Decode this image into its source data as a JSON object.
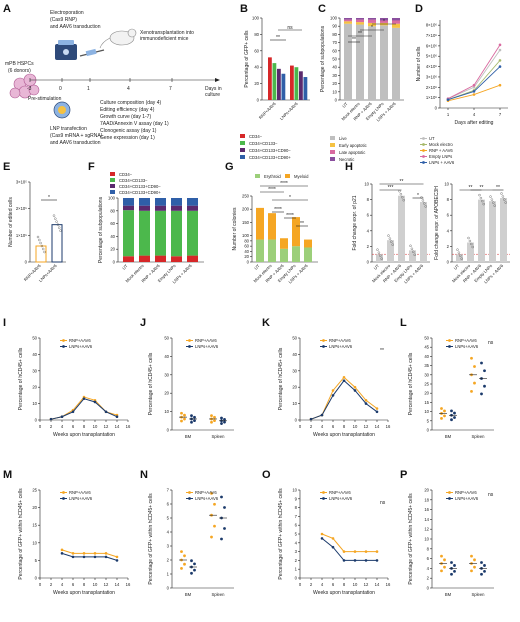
{
  "colors": {
    "orange": "#f5a623",
    "navy": "#1b3a6b",
    "red": "#d62728",
    "green": "#4cb84c",
    "darkpurple": "#5b2a6e",
    "blue": "#2f5fa8",
    "gray": "#bfbfbf",
    "yellow": "#f5c242",
    "pink": "#d96aa0",
    "lightgreen": "#9ccf7a",
    "purple": "#8a4f9e",
    "olive": "#a6b96b"
  },
  "panel_labels": {
    "A": "A",
    "B": "B",
    "C": "C",
    "D": "D",
    "E": "E",
    "F": "F",
    "G": "G",
    "H": "H",
    "I": "I",
    "J": "J",
    "K": "K",
    "L": "L",
    "M": "M",
    "N": "N",
    "O": "O",
    "P": "P"
  },
  "panelA": {
    "electroporation": "Electroporation",
    "electroporation_sub": "(Cas9 RNP)",
    "electroporation_sub2": "and AAV6 transduction",
    "source": "mPB HSPCs",
    "donors": "(6 donors)",
    "prestim": "Pre-stimulation",
    "lnp": "LNP transfection",
    "lnp_sub": "(Cas9 mRNA + sgRNA)",
    "lnp_sub2": "and AAV6 transduction",
    "xeno": "Xenotransplantation into",
    "xeno2": "immunodeficient mice",
    "days": [
      "-3",
      "0",
      "1",
      "4",
      "7"
    ],
    "days_label": "Days in",
    "days_label2": "culture",
    "readouts": [
      "Culture composition (day 4)",
      "Editing efficiency (day 4)",
      "Growth curve (day 1-7)",
      "7AAD/Annexin V assay (day 1)",
      "Clonogenic assay (day 1)",
      "Gene expression (day 1)"
    ]
  },
  "chart_data": [
    {
      "id": "B",
      "type": "bar",
      "ylabel": "Percentage of GFP+ cells",
      "ylim": [
        0,
        100
      ],
      "yticks": [
        0,
        20,
        40,
        60,
        80,
        100
      ],
      "categories": [
        "RNP+AAV6",
        "LNPs+AAV6"
      ],
      "series": [
        {
          "name": "CD34−",
          "values": [
            52,
            42
          ]
        },
        {
          "name": "CD34+CD133−",
          "values": [
            45,
            40
          ]
        },
        {
          "name": "CD34+CD133+CD90−",
          "values": [
            38,
            35
          ]
        },
        {
          "name": "CD34+CD133+CD90+",
          "values": [
            32,
            28
          ]
        }
      ],
      "annotations": [
        "**",
        "ns"
      ]
    },
    {
      "id": "C",
      "type": "bar",
      "ylabel": "Percentage of subpopulations",
      "ylim": [
        0,
        100
      ],
      "yticks": [
        0,
        10,
        20,
        30,
        40,
        50,
        60,
        70,
        80,
        90,
        100
      ],
      "categories": [
        "UT",
        "Mock electro",
        "RNP + AAV6",
        "Empty LNPs",
        "LNPs + AAV6"
      ],
      "series": [
        {
          "name": "Live",
          "values": [
            93,
            92,
            90,
            91,
            88
          ]
        },
        {
          "name": "Early apoptotic",
          "values": [
            3,
            3,
            4,
            3,
            5
          ]
        },
        {
          "name": "Late apoptotic",
          "values": [
            2,
            3,
            4,
            3,
            4
          ]
        },
        {
          "name": "Necrotic",
          "values": [
            2,
            2,
            2,
            3,
            3
          ]
        }
      ],
      "annotations": [
        "**",
        "**",
        "*",
        "*"
      ]
    },
    {
      "id": "D",
      "type": "line",
      "ylabel": "Number of cells",
      "xlabel": "Days after editing",
      "xticks": [
        "1",
        "4",
        "7"
      ],
      "yticks": [
        "1×10⁶",
        "2×10⁶",
        "3×10⁶",
        "4×10⁶",
        "5×10⁶",
        "6×10⁶",
        "7×10⁶",
        "8×10⁶"
      ],
      "ylim": [
        0,
        8.5
      ],
      "series": [
        {
          "name": "UT",
          "values": [
            0.9,
            2.0,
            5.6
          ]
        },
        {
          "name": "Mock electro",
          "values": [
            0.8,
            1.7,
            4.6
          ]
        },
        {
          "name": "RNP + AAV6",
          "values": [
            0.7,
            1.3,
            2.2
          ]
        },
        {
          "name": "Empty LNPs",
          "values": [
            0.9,
            2.2,
            6.1
          ]
        },
        {
          "name": "LNPs + AAV6",
          "values": [
            0.8,
            1.6,
            4.0
          ]
        }
      ]
    },
    {
      "id": "E",
      "type": "bar",
      "ylabel": "Number of edited cells",
      "categories": [
        "RNP+AAV6",
        "LNPs+AAV6"
      ],
      "values": [
        0.6,
        1.4
      ],
      "yticks": [
        "0",
        "1×10⁵",
        "2×10⁵",
        "3×10⁵"
      ],
      "ylim": [
        0,
        3
      ],
      "annotations": [
        "*"
      ]
    },
    {
      "id": "F",
      "type": "bar",
      "ylabel": "Percentage of subpopulations",
      "ylim": [
        0,
        100
      ],
      "yticks": [
        0,
        20,
        40,
        60,
        80,
        100
      ],
      "categories": [
        "UT",
        "Mock electro",
        "RNP + AAV6",
        "Empty LNPs",
        "LNPs + AAV6"
      ],
      "series": [
        {
          "name": "CD34−",
          "values": [
            9,
            10,
            10,
            9,
            10
          ]
        },
        {
          "name": "CD34+CD133−",
          "values": [
            72,
            70,
            70,
            71,
            70
          ]
        },
        {
          "name": "CD34+CD133+CD90−",
          "values": [
            7,
            8,
            8,
            8,
            8
          ]
        },
        {
          "name": "CD34+CD133+CD90+",
          "values": [
            12,
            12,
            12,
            12,
            12
          ]
        }
      ]
    },
    {
      "id": "G",
      "type": "bar",
      "ylabel": "Number of colonies",
      "ylim": [
        0,
        250
      ],
      "yticks": [
        0,
        20,
        40,
        60,
        80,
        100,
        150,
        200,
        250
      ],
      "categories": [
        "UT",
        "Mock electro",
        "RNP + AAV6",
        "Empty LNPs",
        "LNPs + AAV6"
      ],
      "series": [
        {
          "name": "Erythroid",
          "values": [
            85,
            85,
            50,
            60,
            55
          ]
        },
        {
          "name": "Myeloid",
          "values": [
            120,
            100,
            40,
            110,
            30
          ]
        }
      ],
      "annotations": [
        "****",
        "****",
        "****",
        "****",
        "*",
        "**"
      ]
    },
    {
      "id": "H1",
      "type": "bar",
      "ylabel": "Fold change expr. of p21",
      "ylim": [
        0,
        10
      ],
      "yticks": [
        0,
        2,
        4,
        6,
        8,
        10
      ],
      "categories": [
        "UT",
        "Mock electro",
        "RNP + AAV6",
        "Empty LNPs",
        "LNPs + AAV6"
      ],
      "values": [
        1,
        2.8,
        8.5,
        1.5,
        7.7
      ],
      "annotations": [
        "***",
        "**",
        "*"
      ]
    },
    {
      "id": "H2",
      "type": "bar",
      "ylabel": "Fold change expr. of APOBEC3H",
      "ylim": [
        0,
        10
      ],
      "yticks": [
        0,
        2,
        4,
        6,
        8,
        10
      ],
      "categories": [
        "UT",
        "Mock electro",
        "RNP + AAV6",
        "Empty LNPs",
        "LNPs + AAV6"
      ],
      "values": [
        1,
        2.5,
        8.0,
        7.8,
        8.2
      ],
      "annotations": [
        "**",
        "**",
        "**"
      ]
    },
    {
      "id": "I",
      "type": "line",
      "ylabel": "Percentage of hCD45+ cells",
      "xlabel": "Weeks upon transplantation",
      "xticks": [
        0,
        2,
        4,
        6,
        8,
        10,
        12,
        14,
        16
      ],
      "ylim": [
        0,
        50
      ],
      "yticks": [
        0,
        10,
        20,
        30,
        40,
        50
      ],
      "x": [
        2,
        4,
        6,
        8,
        10,
        12,
        14
      ],
      "series": [
        {
          "name": "RNP+AAV6",
          "values": [
            0.5,
            2,
            6,
            14,
            12,
            5,
            3
          ]
        },
        {
          "name": "LNPs+AAV6",
          "values": [
            0.5,
            2,
            5,
            13,
            11,
            5,
            2
          ]
        }
      ]
    },
    {
      "id": "J",
      "type": "scatter",
      "ylabel": "Percentage of hCD45+ cells",
      "categories": [
        "BM",
        "Spleen"
      ],
      "ylim": [
        0,
        50
      ],
      "yticks": [
        0,
        10,
        20,
        30,
        40,
        50
      ],
      "series": [
        {
          "name": "RNP+AAV6",
          "values": [
            7,
            6
          ]
        },
        {
          "name": "LNPs+AAV6",
          "values": [
            6,
            5
          ]
        }
      ]
    },
    {
      "id": "K",
      "type": "line",
      "ylabel": "Percentage of hCD45+ cells",
      "xlabel": "Weeks upon transplantation",
      "xticks": [
        0,
        2,
        4,
        6,
        8,
        10,
        12,
        14,
        16
      ],
      "ylim": [
        0,
        50
      ],
      "yticks": [
        0,
        10,
        20,
        30,
        40,
        50
      ],
      "x": [
        2,
        4,
        6,
        8,
        10,
        12,
        14
      ],
      "series": [
        {
          "name": "RNP+AAV6",
          "values": [
            0.5,
            3,
            18,
            26,
            20,
            12,
            7
          ]
        },
        {
          "name": "LNPs+AAV6",
          "values": [
            0.5,
            3,
            15,
            24,
            18,
            10,
            5
          ]
        }
      ],
      "annotations": [
        "**"
      ]
    },
    {
      "id": "L",
      "type": "scatter",
      "ylabel": "Percentage of hCD45+ cells",
      "categories": [
        "BM",
        "Spleen"
      ],
      "ylim": [
        0,
        50
      ],
      "yticks": [
        0,
        5,
        10,
        15,
        20,
        25,
        30,
        35,
        40,
        45,
        50
      ],
      "series": [
        {
          "name": "RNP+AAV6",
          "values": [
            9,
            30
          ]
        },
        {
          "name": "LNPs+AAV6",
          "values": [
            8,
            28
          ]
        }
      ],
      "annotations": [
        "ns"
      ]
    },
    {
      "id": "M",
      "type": "line",
      "ylabel": "Percentage of GFP+ within hCD45+ cells",
      "xlabel": "Weeks upon transplantation",
      "xticks": [
        0,
        2,
        4,
        6,
        8,
        10,
        12,
        14,
        16
      ],
      "ylim": [
        0,
        25
      ],
      "yticks": [
        0,
        5,
        10,
        15,
        20,
        25
      ],
      "x": [
        4,
        6,
        8,
        10,
        12,
        14
      ],
      "series": [
        {
          "name": "RNP+AAV6",
          "values": [
            8,
            7,
            7,
            7,
            7,
            6
          ]
        },
        {
          "name": "LNPs+AAV6",
          "values": [
            7,
            6,
            6,
            6,
            6,
            5
          ]
        }
      ]
    },
    {
      "id": "N",
      "type": "scatter",
      "ylabel": "Percentage of GFP+ within hCD45+ cells",
      "categories": [
        "BM",
        "Spleen"
      ],
      "ylim": [
        0,
        7
      ],
      "yticks": [
        0,
        1,
        2,
        3,
        4,
        5,
        6,
        7
      ],
      "series": [
        {
          "name": "RNP+AAV6",
          "values": [
            2,
            5.2
          ]
        },
        {
          "name": "LNPs+AAV6",
          "values": [
            1.5,
            5.0
          ]
        }
      ]
    },
    {
      "id": "O",
      "type": "line",
      "ylabel": "Percentage of GFP+ within hCD45+ cells",
      "xlabel": "Weeks upon transplantation",
      "xticks": [
        0,
        2,
        4,
        6,
        8,
        10,
        12,
        14,
        16
      ],
      "ylim": [
        0,
        10
      ],
      "yticks": [
        0,
        1,
        2,
        3,
        4,
        5,
        6,
        7,
        8,
        9,
        10
      ],
      "x": [
        4,
        6,
        8,
        10,
        12,
        14
      ],
      "series": [
        {
          "name": "RNP+AAV6",
          "values": [
            5,
            4.5,
            3,
            3,
            3,
            3
          ]
        },
        {
          "name": "LNPs+AAV6",
          "values": [
            4.5,
            3.5,
            2,
            2,
            2,
            2
          ]
        }
      ],
      "annotations": [
        "ns"
      ]
    },
    {
      "id": "P",
      "type": "scatter",
      "ylabel": "Percentage of GFP+ within hCD45+ cells",
      "categories": [
        "BM",
        "Spleen"
      ],
      "ylim": [
        0,
        20
      ],
      "yticks": [
        0,
        2,
        4,
        6,
        8,
        10,
        12,
        14,
        16,
        18,
        20
      ],
      "series": [
        {
          "name": "RNP+AAV6",
          "values": [
            5,
            5
          ]
        },
        {
          "name": "LNPs+AAV6",
          "values": [
            4,
            4
          ]
        }
      ],
      "annotations": [
        "ns"
      ]
    }
  ],
  "legends": {
    "BF_row": [
      "CD34−",
      "CD34+CD133−",
      "CD34+CD133+CD90−",
      "CD34+CD133+CD90+"
    ],
    "C_legend": [
      "Live",
      "Early apoptotic",
      "Late apoptotic",
      "Necrotic"
    ],
    "D_legend": [
      "UT",
      "Mock electro",
      "RNP + AAV6",
      "Empty LNPs",
      "LNPs + AAV6"
    ],
    "G_legend": [
      "Erythroid",
      "Myeloid"
    ],
    "group_legend": [
      "RNP+AAV6",
      "LNPs+AAV6"
    ]
  }
}
